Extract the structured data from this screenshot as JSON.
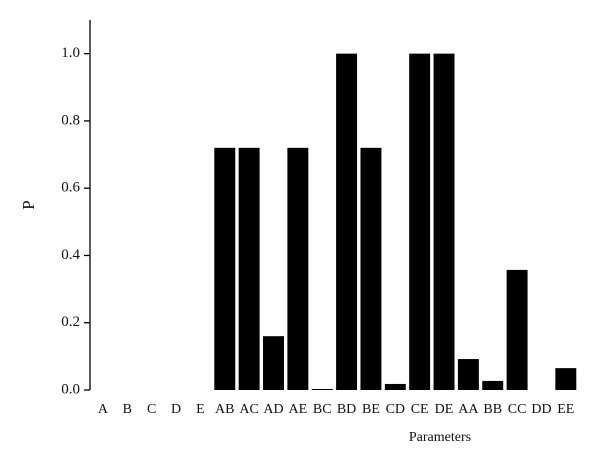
{
  "chart_data": {
    "type": "bar",
    "x_label": "Parameters",
    "y_label": "P",
    "categories": [
      "A",
      "B",
      "C",
      "D",
      "E",
      "AB",
      "AC",
      "AD",
      "AE",
      "BC",
      "BD",
      "BE",
      "CD",
      "CE",
      "DE",
      "AA",
      "BB",
      "CC",
      "DD",
      "EE"
    ],
    "values": [
      0,
      0,
      0,
      0,
      0,
      0.72,
      0.72,
      0.16,
      0.72,
      0.003,
      1.0,
      0.72,
      0.018,
      1.0,
      1.0,
      0.092,
      0.027,
      0.357,
      0,
      0.065
    ],
    "color": "#000000",
    "ylim": [
      0,
      1.1
    ],
    "yticks": [
      {
        "value": 0,
        "label": "0.0"
      },
      0.2,
      0.4,
      0.6,
      0.8,
      {
        "value": 1,
        "label": "1.0"
      }
    ]
  }
}
